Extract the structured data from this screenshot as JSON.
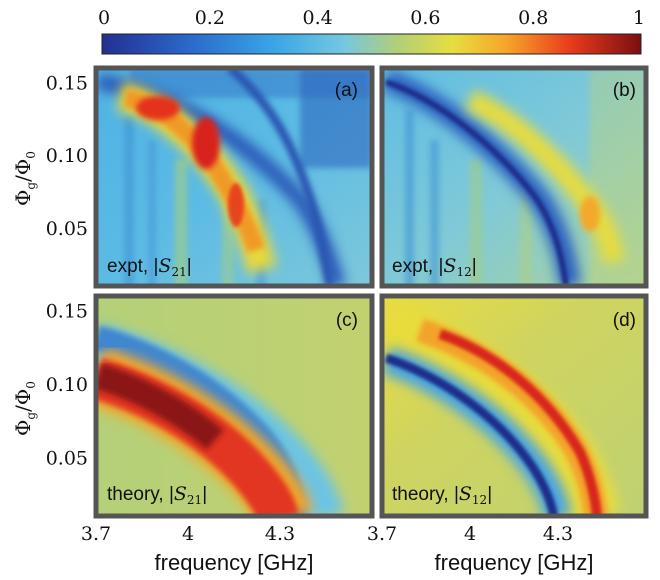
{
  "chart_data": {
    "type": "heatmap",
    "colorbar": {
      "ticks": [
        "0",
        "0.2",
        "0.4",
        "0.6",
        "0.8",
        "1"
      ],
      "range": [
        0,
        1
      ]
    },
    "ylabel": {
      "main": "Φ",
      "sub": "g",
      "sep": "/Φ",
      "sub2": "0"
    },
    "xlabel": "frequency [GHz]",
    "xticks": [
      "3.7",
      "4",
      "4.3"
    ],
    "xlim": [
      3.7,
      4.6
    ],
    "yticks": [
      "0.15",
      "0.10",
      "0.05"
    ],
    "ylim": [
      0.01,
      0.16
    ],
    "panels": [
      {
        "letter": "(a)",
        "label_prefix": "expt, |",
        "label_S": "S",
        "label_sub": "21",
        "label_suffix": "|",
        "kind": "expt",
        "peak": "red"
      },
      {
        "letter": "(b)",
        "label_prefix": "expt, |",
        "label_S": "S",
        "label_sub": "12",
        "label_suffix": "|",
        "kind": "expt",
        "peak": "yellow"
      },
      {
        "letter": "(c)",
        "label_prefix": "theory, |",
        "label_S": "S",
        "label_sub": "21",
        "label_suffix": "|",
        "kind": "theory",
        "peak": "red"
      },
      {
        "letter": "(d)",
        "label_prefix": "theory, |",
        "label_S": "S",
        "label_sub": "12",
        "label_suffix": "|",
        "kind": "theory",
        "peak": "red"
      }
    ]
  }
}
